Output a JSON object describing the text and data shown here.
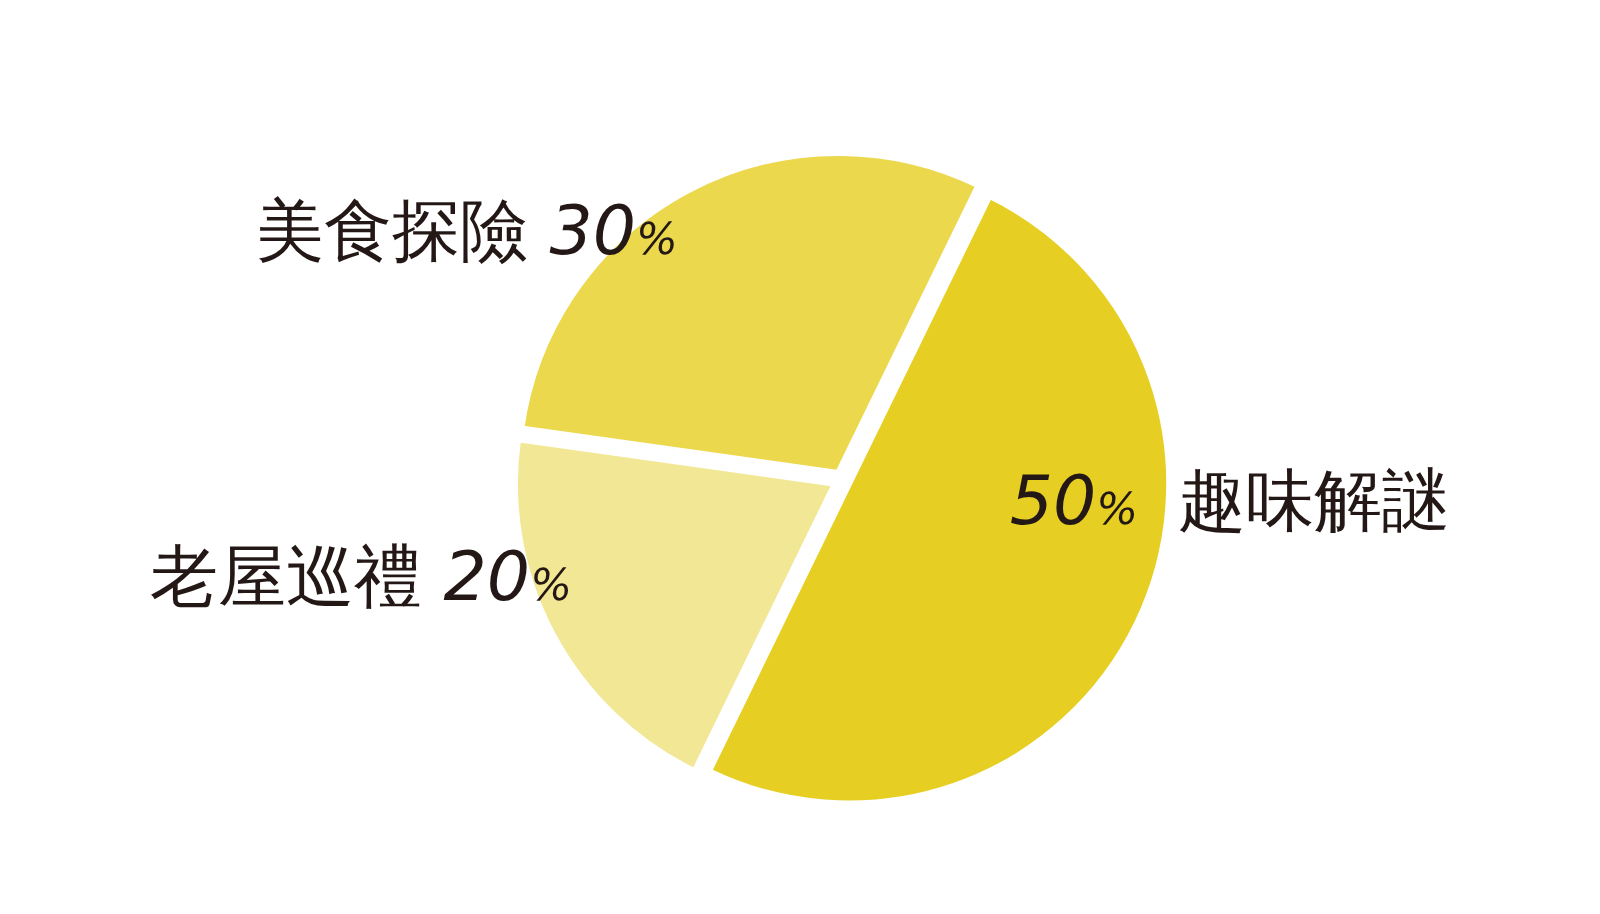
{
  "chart_data": {
    "type": "pie",
    "categories": [
      "趣味解謎",
      "老屋巡禮",
      "美食探險"
    ],
    "values": [
      50,
      20,
      30
    ],
    "colors": [
      "#e6cf22",
      "#f2e794",
      "#ecd84c"
    ],
    "value_labels": [
      "50%",
      "20%",
      "30%"
    ]
  }
}
